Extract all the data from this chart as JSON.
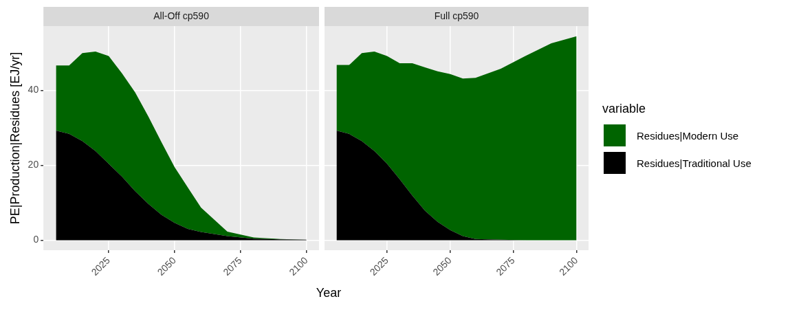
{
  "chart_data": [
    {
      "type": "area",
      "title": "All-Off cp590",
      "ylabel": "PE|Production|Residues [EJ/yr]",
      "stacked": true,
      "grid": true,
      "x": [
        2005,
        2010,
        2015,
        2020,
        2025,
        2030,
        2035,
        2040,
        2045,
        2050,
        2055,
        2060,
        2070,
        2080,
        2090,
        2100
      ],
      "series": [
        {
          "color": "#000000",
          "values": [
            29.3,
            28.4,
            26.5,
            23.8,
            20.4,
            17.0,
            13.1,
            9.7,
            6.8,
            4.6,
            3.0,
            2.2,
            1.1,
            0.4,
            0.2,
            0.1
          ]
        },
        {
          "color": "#006400",
          "values": [
            17.4,
            18.3,
            23.5,
            26.6,
            28.8,
            27.6,
            26.4,
            23.4,
            19.4,
            14.9,
            11.1,
            6.5,
            1.2,
            0.3,
            0.1,
            0.0
          ]
        }
      ],
      "xlim": [
        2000.25,
        2104.75
      ],
      "xticks": [
        2025,
        2050,
        2075,
        2100
      ],
      "ylim": [
        -2.7,
        57.2
      ],
      "yticks": [
        0,
        20,
        40
      ]
    },
    {
      "type": "area",
      "title": "Full cp590",
      "xlabel": "Year",
      "stacked": true,
      "grid": true,
      "legend": "right",
      "legend_title": "variable",
      "tick_labels": "x",
      "x": [
        2005,
        2010,
        2015,
        2020,
        2025,
        2030,
        2035,
        2040,
        2045,
        2050,
        2055,
        2060,
        2070,
        2080,
        2090,
        2100
      ],
      "series": [
        {
          "name": "Residues|Traditional Use",
          "color": "#000000",
          "values": [
            29.3,
            28.4,
            26.5,
            23.8,
            20.4,
            16.3,
            11.9,
            7.9,
            4.9,
            2.7,
            1.1,
            0.3,
            0.1,
            0.0,
            0.0,
            0.0
          ]
        },
        {
          "name": "Residues|Modern Use",
          "color": "#006400",
          "values": [
            17.5,
            18.4,
            23.5,
            26.6,
            28.8,
            31.0,
            35.4,
            38.3,
            40.2,
            41.7,
            42.1,
            43.1,
            45.7,
            49.3,
            52.6,
            54.5
          ]
        }
      ],
      "xlim": [
        2000.25,
        2104.75
      ],
      "xticks": [
        2025,
        2050,
        2075,
        2100
      ],
      "ylim": [
        -2.7,
        57.2
      ],
      "yticks": [
        0,
        20,
        40
      ]
    }
  ]
}
